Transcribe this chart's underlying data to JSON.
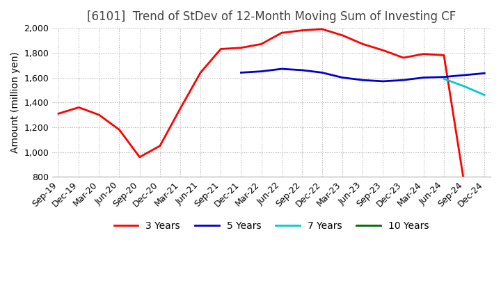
{
  "title": "[6101]  Trend of StDev of 12-Month Moving Sum of Investing CF",
  "ylabel": "Amount (million yen)",
  "ylim": [
    800,
    2000
  ],
  "yticks": [
    800,
    1000,
    1200,
    1400,
    1600,
    1800,
    2000
  ],
  "x_labels": [
    "Sep-19",
    "Dec-19",
    "Mar-20",
    "Jun-20",
    "Sep-20",
    "Dec-20",
    "Mar-21",
    "Jun-21",
    "Sep-21",
    "Dec-21",
    "Mar-22",
    "Jun-22",
    "Sep-22",
    "Dec-22",
    "Mar-23",
    "Jun-23",
    "Sep-23",
    "Dec-23",
    "Mar-24",
    "Jun-24",
    "Sep-24",
    "Dec-24"
  ],
  "series": {
    "3 Years": {
      "color": "#FF0000",
      "values": [
        1310,
        1360,
        1300,
        1180,
        960,
        1050,
        1350,
        1640,
        1830,
        1840,
        1870,
        1960,
        1980,
        1990,
        1940,
        1870,
        1820,
        1760,
        1790,
        1780,
        750,
        null
      ]
    },
    "5 Years": {
      "color": "#0000CC",
      "values": [
        null,
        null,
        null,
        null,
        null,
        null,
        null,
        null,
        null,
        1640,
        1650,
        1670,
        1660,
        1640,
        1600,
        1580,
        1570,
        1580,
        1600,
        1605,
        1620,
        1635
      ]
    },
    "7 Years": {
      "color": "#00CCCC",
      "values": [
        null,
        null,
        null,
        null,
        null,
        null,
        null,
        null,
        null,
        null,
        null,
        null,
        null,
        null,
        null,
        null,
        null,
        null,
        null,
        1590,
        1530,
        1460
      ]
    },
    "10 Years": {
      "color": "#006600",
      "values": [
        null,
        null,
        null,
        null,
        null,
        null,
        null,
        null,
        null,
        null,
        null,
        null,
        null,
        null,
        null,
        null,
        null,
        null,
        null,
        null,
        null,
        null
      ]
    }
  },
  "legend_order": [
    "3 Years",
    "5 Years",
    "7 Years",
    "10 Years"
  ],
  "background_color": "#FFFFFF",
  "grid_color": "#AAAAAA",
  "title_color": "#444444",
  "title_fontsize": 12,
  "axis_fontsize": 10,
  "tick_fontsize": 9
}
